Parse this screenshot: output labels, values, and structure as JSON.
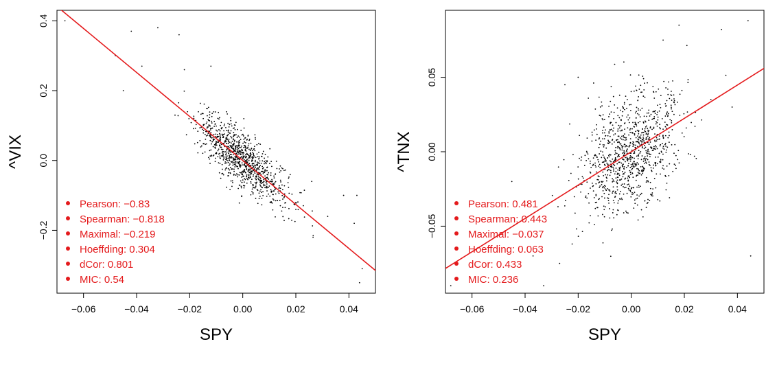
{
  "chart_data": [
    {
      "type": "scatter",
      "xlabel": "SPY",
      "ylabel": "^VIX",
      "xlim": [
        -0.07,
        0.05
      ],
      "ylim": [
        -0.38,
        0.43
      ],
      "xticks": [
        "−0.06",
        "−0.04",
        "−0.02",
        "0.00",
        "0.02",
        "0.04"
      ],
      "xtick_values": [
        -0.06,
        -0.04,
        -0.02,
        0.0,
        0.02,
        0.04
      ],
      "yticks": [
        "−0.2",
        "0.0",
        "0.2",
        "0.4"
      ],
      "ytick_values": [
        -0.2,
        0.0,
        0.2,
        0.4
      ],
      "fit_line": {
        "intercept": 0.0,
        "slope": -6.3,
        "color": "#e41a1c"
      },
      "point_cloud": {
        "n": 1000,
        "x_sd": 0.0085,
        "slope": -6.0,
        "resid_sd": 0.04,
        "seed": 7
      },
      "outliers": [
        {
          "x": -0.067,
          "y": 0.4
        },
        {
          "x": -0.048,
          "y": 0.3
        },
        {
          "x": -0.042,
          "y": 0.37
        },
        {
          "x": -0.045,
          "y": 0.2
        },
        {
          "x": -0.032,
          "y": 0.38
        },
        {
          "x": -0.024,
          "y": 0.36
        },
        {
          "x": -0.038,
          "y": 0.27
        },
        {
          "x": -0.022,
          "y": 0.26
        },
        {
          "x": -0.012,
          "y": 0.27
        },
        {
          "x": 0.026,
          "y": -0.06
        },
        {
          "x": 0.038,
          "y": -0.1
        },
        {
          "x": 0.043,
          "y": -0.1
        },
        {
          "x": 0.042,
          "y": -0.18
        },
        {
          "x": 0.045,
          "y": -0.31
        },
        {
          "x": 0.044,
          "y": -0.35
        },
        {
          "x": 0.032,
          "y": -0.16
        },
        {
          "x": 0.02,
          "y": -0.12
        }
      ],
      "stats": [
        "Pearson: −0.83",
        "Spearman: −0.818",
        "Maximal: −0.219",
        "Hoeffding: 0.304",
        "dCor: 0.801",
        "MIC: 0.54"
      ]
    },
    {
      "type": "scatter",
      "xlabel": "SPY",
      "ylabel": "^TNX",
      "xlim": [
        -0.07,
        0.05
      ],
      "ylim": [
        -0.095,
        0.095
      ],
      "xticks": [
        "−0.06",
        "−0.04",
        "−0.02",
        "0.00",
        "0.02",
        "0.04"
      ],
      "xtick_values": [
        -0.06,
        -0.04,
        -0.02,
        0.0,
        0.02,
        0.04
      ],
      "yticks": [
        "−0.05",
        "0.00",
        "0.05"
      ],
      "ytick_values": [
        -0.05,
        0.0,
        0.05
      ],
      "fit_line": {
        "intercept": 0.0,
        "slope": 1.12,
        "color": "#e41a1c"
      },
      "point_cloud": {
        "n": 1000,
        "x_sd": 0.0095,
        "slope": 1.0,
        "resid_sd": 0.019,
        "seed": 13
      },
      "outliers": [
        {
          "x": -0.068,
          "y": -0.09
        },
        {
          "x": -0.045,
          "y": -0.02
        },
        {
          "x": -0.037,
          "y": -0.07
        },
        {
          "x": -0.033,
          "y": -0.09
        },
        {
          "x": -0.027,
          "y": -0.075
        },
        {
          "x": -0.025,
          "y": 0.045
        },
        {
          "x": 0.044,
          "y": 0.088
        },
        {
          "x": 0.034,
          "y": 0.082
        },
        {
          "x": 0.045,
          "y": -0.07
        },
        {
          "x": 0.03,
          "y": 0.035
        },
        {
          "x": 0.038,
          "y": 0.03
        },
        {
          "x": -0.02,
          "y": 0.05
        },
        {
          "x": 0.012,
          "y": 0.075
        },
        {
          "x": 0.018,
          "y": 0.085
        }
      ],
      "stats": [
        "Pearson: 0.481",
        "Spearman: 0.443",
        "Maximal: −0.037",
        "Hoeffding: 0.063",
        "dCor: 0.433",
        "MIC: 0.236"
      ]
    }
  ],
  "colors": {
    "accent": "#e41a1c",
    "points": "#000000",
    "frame": "#000000"
  }
}
